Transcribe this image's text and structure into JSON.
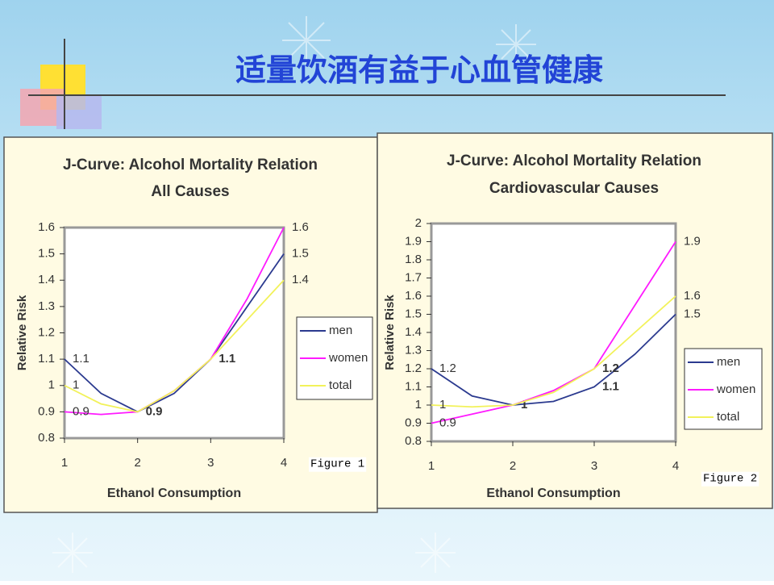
{
  "title": "适量饮酒有益于心血管健康",
  "chart_data": [
    {
      "type": "line",
      "title": "J-Curve: Alcohol Mortality Relation",
      "subtitle": "All Causes",
      "x_label": "Ethanol Consumption",
      "y_label": "Relative Risk",
      "figure_label": "Figure 1",
      "x": [
        1,
        1.5,
        2,
        2.5,
        3,
        3.5,
        4
      ],
      "xlim": [
        1,
        4
      ],
      "xticks": [
        1,
        2,
        3,
        4
      ],
      "ylim": [
        0.8,
        1.6
      ],
      "yticks": [
        0.8,
        0.9,
        1,
        1.1,
        1.2,
        1.3,
        1.4,
        1.5,
        1.6
      ],
      "legend": "right",
      "grid": false,
      "series": [
        {
          "name": "men",
          "color": "#2b3a8f",
          "values": [
            1.1,
            0.97,
            0.9,
            0.97,
            1.1,
            1.3,
            1.5
          ],
          "value_labels": [
            "1.1",
            null,
            "0.9",
            null,
            "1.1",
            null,
            "1.5"
          ]
        },
        {
          "name": "women",
          "color": "#ff1aff",
          "values": [
            0.9,
            0.89,
            0.9,
            0.98,
            1.1,
            1.33,
            1.6
          ],
          "value_labels": [
            "0.9",
            null,
            null,
            null,
            null,
            null,
            "1.6"
          ]
        },
        {
          "name": "total",
          "color": "#f2f25a",
          "values": [
            1.0,
            0.93,
            0.9,
            0.98,
            1.1,
            1.25,
            1.4
          ],
          "value_labels": [
            "1",
            null,
            null,
            null,
            null,
            null,
            "1.4"
          ]
        }
      ]
    },
    {
      "type": "line",
      "title": "J-Curve: Alcohol Mortality Relation",
      "subtitle": "Cardiovascular Causes",
      "x_label": "Ethanol Consumption",
      "y_label": "Relative Risk",
      "figure_label": "Figure 2",
      "x": [
        1,
        1.5,
        2,
        2.5,
        3,
        3.5,
        4
      ],
      "xlim": [
        1,
        4
      ],
      "xticks": [
        1,
        2,
        3,
        4
      ],
      "ylim": [
        0.8,
        2
      ],
      "yticks": [
        0.8,
        0.9,
        1,
        1.1,
        1.2,
        1.3,
        1.4,
        1.5,
        1.6,
        1.7,
        1.8,
        1.9,
        2
      ],
      "legend": "right",
      "grid": false,
      "series": [
        {
          "name": "men",
          "color": "#2b3a8f",
          "values": [
            1.2,
            1.05,
            1.0,
            1.02,
            1.1,
            1.28,
            1.5
          ],
          "value_labels": [
            "1.2",
            null,
            "1",
            null,
            "1.1",
            null,
            "1.5"
          ]
        },
        {
          "name": "women",
          "color": "#ff1aff",
          "values": [
            0.9,
            0.95,
            1.0,
            1.08,
            1.2,
            1.55,
            1.9
          ],
          "value_labels": [
            "0.9",
            null,
            null,
            null,
            null,
            null,
            "1.9"
          ]
        },
        {
          "name": "total",
          "color": "#f2f25a",
          "values": [
            1.0,
            0.99,
            1.0,
            1.07,
            1.2,
            1.4,
            1.6
          ],
          "value_labels": [
            "1",
            null,
            null,
            null,
            "1.2",
            null,
            "1.6"
          ]
        }
      ]
    }
  ]
}
